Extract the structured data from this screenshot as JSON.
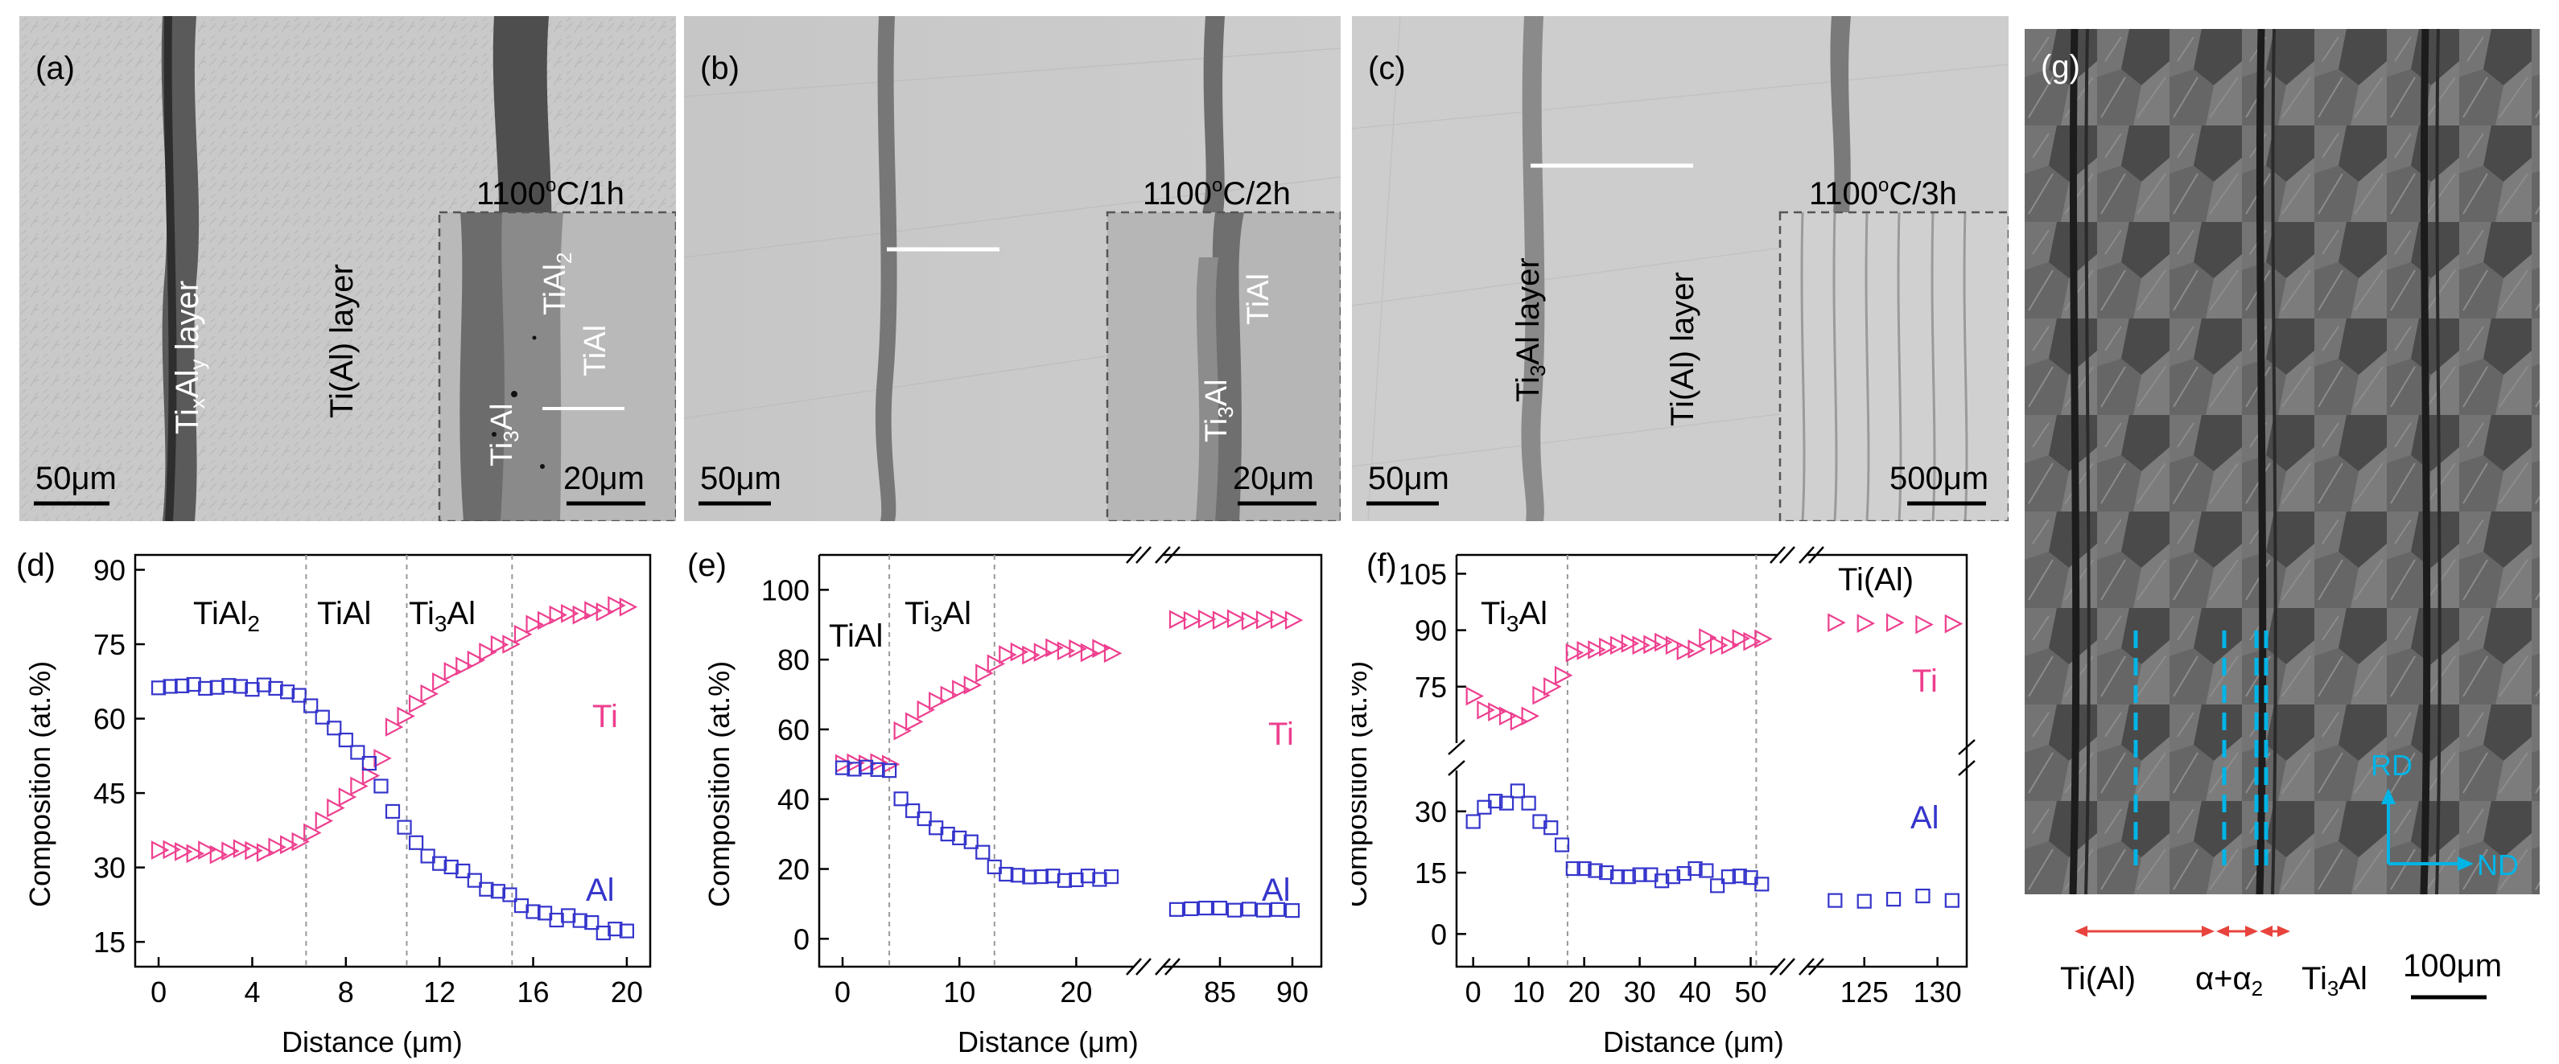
{
  "micrographs": {
    "a": {
      "label": "(a)",
      "condition_base": "1100",
      "condition_sup": "o",
      "condition_tail": "C/1h",
      "layer_left": "TixAly layer",
      "layer_right": "Ti(Al) layer",
      "scale_main": "50μm",
      "scale_inset": "20μm",
      "inset_phases": [
        "TiAl2",
        "TiAl",
        "Ti3Al"
      ]
    },
    "b": {
      "label": "(b)",
      "condition_base": "1100",
      "condition_sup": "o",
      "condition_tail": "C/2h",
      "scale_main": "50μm",
      "scale_inset": "20μm",
      "inset_phases": [
        "TiAl",
        "Ti3Al"
      ]
    },
    "c": {
      "label": "(c)",
      "condition_base": "1100",
      "condition_sup": "o",
      "condition_tail": "C/3h",
      "layer_left": "Ti3Al layer",
      "layer_right": "Ti(Al) layer",
      "scale_main": "50μm",
      "scale_inset": "500μm"
    },
    "g": {
      "label": "(g)",
      "rd": "RD",
      "nd": "ND",
      "bottom_labels": [
        "Ti(Al)",
        "α+α2",
        "Ti3Al"
      ],
      "scale": "100μm"
    }
  },
  "chart_data": [
    {
      "panel": "(d)",
      "type": "scatter",
      "xlabel": "Distance (μm)",
      "ylabel": "Composition (at.%)",
      "xlim": [
        -1,
        21
      ],
      "ylim": [
        10,
        93
      ],
      "xticks": [
        0,
        4,
        8,
        12,
        16,
        20
      ],
      "yticks": [
        15,
        30,
        45,
        60,
        75,
        90
      ],
      "boundaries": [
        6.3,
        10.6,
        15.1
      ],
      "regions": [
        "TiAl2",
        "TiAl",
        "Ti3Al"
      ],
      "series": [
        {
          "name": "Ti",
          "marker": "triangle-right",
          "color": "#ee3f8f",
          "points": [
            [
              0,
              33.5
            ],
            [
              0.5,
              33.6
            ],
            [
              1,
              33.2
            ],
            [
              1.5,
              32.8
            ],
            [
              2,
              33.5
            ],
            [
              2.5,
              32.6
            ],
            [
              3,
              33.3
            ],
            [
              3.5,
              33.8
            ],
            [
              4,
              33.4
            ],
            [
              4.5,
              33.0
            ],
            [
              5,
              34.1
            ],
            [
              5.5,
              34.6
            ],
            [
              6,
              35.2
            ],
            [
              6.5,
              37.0
            ],
            [
              7,
              39.4
            ],
            [
              7.5,
              42.0
            ],
            [
              8,
              44.2
            ],
            [
              8.5,
              46.4
            ],
            [
              9,
              48.5
            ],
            [
              9.5,
              52.0
            ],
            [
              10,
              58.3
            ],
            [
              10.5,
              60.5
            ],
            [
              11,
              63.0
            ],
            [
              11.5,
              65.0
            ],
            [
              12,
              67.4
            ],
            [
              12.5,
              69.5
            ],
            [
              13,
              70.6
            ],
            [
              13.5,
              71.8
            ],
            [
              14,
              73.4
            ],
            [
              14.5,
              74.9
            ],
            [
              15,
              75.0
            ],
            [
              15.5,
              77.0
            ],
            [
              16,
              79.0
            ],
            [
              16.5,
              79.8
            ],
            [
              17,
              80.9
            ],
            [
              17.5,
              81.2
            ],
            [
              18,
              80.9
            ],
            [
              18.5,
              81.8
            ],
            [
              19,
              81.5
            ],
            [
              19.5,
              82.8
            ],
            [
              20,
              82.5
            ]
          ]
        },
        {
          "name": "Al",
          "marker": "square",
          "color": "#3535cc",
          "points": [
            [
              0,
              66.2
            ],
            [
              0.5,
              66.5
            ],
            [
              1,
              66.6
            ],
            [
              1.5,
              66.9
            ],
            [
              2,
              66.1
            ],
            [
              2.5,
              66.3
            ],
            [
              3,
              66.7
            ],
            [
              3.5,
              66.5
            ],
            [
              4,
              65.9
            ],
            [
              4.5,
              66.8
            ],
            [
              5,
              66.1
            ],
            [
              5.5,
              65.4
            ],
            [
              6,
              64.7
            ],
            [
              6.5,
              62.6
            ],
            [
              7,
              60.3
            ],
            [
              7.5,
              58.1
            ],
            [
              8,
              55.7
            ],
            [
              8.5,
              53.2
            ],
            [
              9,
              51.0
            ],
            [
              9.5,
              46.4
            ],
            [
              10,
              41.3
            ],
            [
              10.5,
              38.1
            ],
            [
              11,
              35.0
            ],
            [
              11.5,
              32.3
            ],
            [
              12,
              30.8
            ],
            [
              12.5,
              30.1
            ],
            [
              13,
              29.3
            ],
            [
              13.5,
              27.4
            ],
            [
              14,
              25.6
            ],
            [
              14.5,
              25.2
            ],
            [
              15,
              24.5
            ],
            [
              15.5,
              22.3
            ],
            [
              16,
              21.1
            ],
            [
              16.5,
              20.8
            ],
            [
              17,
              19.4
            ],
            [
              17.5,
              20.3
            ],
            [
              18,
              19.3
            ],
            [
              18.5,
              18.9
            ],
            [
              19,
              16.8
            ],
            [
              19.5,
              17.6
            ],
            [
              20,
              17.2
            ]
          ]
        }
      ]
    },
    {
      "panel": "(e)",
      "type": "scatter",
      "xlabel": "Distance (μm)",
      "ylabel": "Composition (at.%)",
      "ylim": [
        -8,
        110
      ],
      "yticks": [
        0,
        20,
        40,
        60,
        80,
        100
      ],
      "segments": [
        {
          "xlim": [
            -2,
            25
          ],
          "xticks": [
            0,
            10,
            20
          ]
        },
        {
          "xlim": [
            81,
            92
          ],
          "xticks": [
            85,
            90
          ]
        }
      ],
      "boundaries": [
        4,
        13
      ],
      "regions": [
        "TiAl",
        "Ti3Al"
      ],
      "series": [
        {
          "name": "Ti",
          "marker": "triangle-right",
          "color": "#ee3f8f",
          "points": [
            [
              0,
              50.2
            ],
            [
              1,
              50.4
            ],
            [
              2,
              50.1
            ],
            [
              3,
              50.5
            ],
            [
              4,
              50.0
            ],
            [
              5,
              59.6
            ],
            [
              6,
              62.2
            ],
            [
              7,
              65.6
            ],
            [
              8,
              68.1
            ],
            [
              9,
              69.8
            ],
            [
              10,
              71.5
            ],
            [
              11,
              72.7
            ],
            [
              12,
              76.1
            ],
            [
              13,
              78.8
            ],
            [
              14,
              81.4
            ],
            [
              15,
              82.2
            ],
            [
              16,
              81.3
            ],
            [
              17,
              82.1
            ],
            [
              18,
              83.4
            ],
            [
              19,
              82.5
            ],
            [
              20,
              83.1
            ],
            [
              21,
              82.0
            ],
            [
              22,
              83.2
            ],
            [
              23,
              81.8
            ],
            [
              82,
              91.5
            ],
            [
              83,
              91.2
            ],
            [
              84,
              91.6
            ],
            [
              85,
              91.3
            ],
            [
              86,
              91.7
            ],
            [
              87,
              91.1
            ],
            [
              88,
              91.4
            ],
            [
              89,
              91.5
            ],
            [
              90,
              91.3
            ]
          ]
        },
        {
          "name": "Al",
          "marker": "square",
          "color": "#3535cc",
          "points": [
            [
              0,
              49.0
            ],
            [
              1,
              48.6
            ],
            [
              2,
              49.2
            ],
            [
              3,
              48.5
            ],
            [
              4,
              48.2
            ],
            [
              5,
              40.1
            ],
            [
              6,
              36.7
            ],
            [
              7,
              34.4
            ],
            [
              8,
              31.8
            ],
            [
              9,
              30.0
            ],
            [
              10,
              28.9
            ],
            [
              11,
              27.8
            ],
            [
              12,
              24.8
            ],
            [
              13,
              20.6
            ],
            [
              14,
              18.5
            ],
            [
              15,
              18.2
            ],
            [
              16,
              17.7
            ],
            [
              17,
              17.8
            ],
            [
              18,
              18.0
            ],
            [
              19,
              16.7
            ],
            [
              20,
              16.9
            ],
            [
              21,
              18.0
            ],
            [
              22,
              17.0
            ],
            [
              23,
              17.8
            ],
            [
              82,
              8.4
            ],
            [
              83,
              8.6
            ],
            [
              84,
              8.8
            ],
            [
              85,
              8.8
            ],
            [
              86,
              8.2
            ],
            [
              87,
              8.5
            ],
            [
              88,
              8.2
            ],
            [
              89,
              8.4
            ],
            [
              90,
              8.1
            ]
          ]
        }
      ]
    },
    {
      "panel": "(f)",
      "type": "scatter",
      "xlabel": "Distance (μm)",
      "ylabel": "Composition (at.%)",
      "y_segments": [
        {
          "ylim": [
            60,
            110
          ],
          "yticks": [
            75,
            90,
            105
          ]
        },
        {
          "ylim": [
            -8,
            40
          ],
          "yticks": [
            0,
            15,
            30
          ]
        }
      ],
      "x_segments": [
        {
          "xlim": [
            -3,
            55
          ],
          "xticks": [
            0,
            10,
            20,
            30,
            40,
            50
          ]
        },
        {
          "xlim": [
            121,
            132
          ],
          "xticks": [
            125,
            130
          ]
        }
      ],
      "boundaries": [
        17,
        51
      ],
      "regions": [
        "Ti3Al",
        "Ti(Al)"
      ],
      "series": [
        {
          "name": "Ti",
          "marker": "triangle-right",
          "color": "#ee3f8f",
          "points": [
            [
              0,
              72.5
            ],
            [
              2,
              68.8
            ],
            [
              4,
              68.3
            ],
            [
              6,
              67.2
            ],
            [
              8,
              65.8
            ],
            [
              10,
              67.2
            ],
            [
              12,
              72.7
            ],
            [
              14,
              75.0
            ],
            [
              16,
              78.0
            ],
            [
              18,
              84.0
            ],
            [
              20,
              84.6
            ],
            [
              22,
              84.8
            ],
            [
              24,
              85.5
            ],
            [
              26,
              86.0
            ],
            [
              28,
              86.5
            ],
            [
              30,
              86.0
            ],
            [
              32,
              86.2
            ],
            [
              34,
              86.8
            ],
            [
              36,
              86.0
            ],
            [
              38,
              84.5
            ],
            [
              40,
              85.0
            ],
            [
              42,
              88.0
            ],
            [
              44,
              86.0
            ],
            [
              46,
              86.0
            ],
            [
              48,
              87.8
            ],
            [
              50,
              87.0
            ],
            [
              52,
              87.7
            ],
            [
              123,
              92.0
            ],
            [
              125,
              91.8
            ],
            [
              127,
              92.0
            ],
            [
              129,
              91.5
            ],
            [
              131,
              91.7
            ]
          ]
        },
        {
          "name": "Al",
          "marker": "square",
          "color": "#3535cc",
          "points": [
            [
              0,
              27.5
            ],
            [
              2,
              31.0
            ],
            [
              4,
              32.5
            ],
            [
              6,
              32.0
            ],
            [
              8,
              35.0
            ],
            [
              10,
              32.0
            ],
            [
              12,
              27.5
            ],
            [
              14,
              26.0
            ],
            [
              16,
              21.8
            ],
            [
              18,
              16.0
            ],
            [
              20,
              16.0
            ],
            [
              22,
              15.5
            ],
            [
              24,
              15.0
            ],
            [
              26,
              14.0
            ],
            [
              28,
              14.0
            ],
            [
              30,
              14.5
            ],
            [
              32,
              14.5
            ],
            [
              34,
              13.0
            ],
            [
              36,
              14.0
            ],
            [
              38,
              14.8
            ],
            [
              40,
              16.0
            ],
            [
              42,
              15.5
            ],
            [
              44,
              11.8
            ],
            [
              46,
              14.0
            ],
            [
              48,
              14.2
            ],
            [
              50,
              13.8
            ],
            [
              52,
              12.2
            ],
            [
              123,
              8.2
            ],
            [
              125,
              8.0
            ],
            [
              127,
              8.5
            ],
            [
              129,
              9.3
            ],
            [
              131,
              8.2
            ]
          ]
        }
      ]
    }
  ]
}
